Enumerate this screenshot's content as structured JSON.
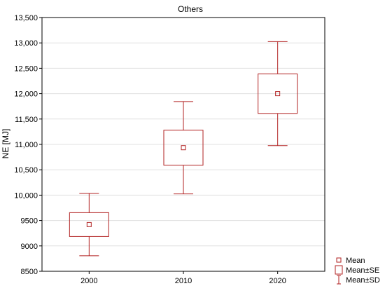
{
  "chart_data": {
    "type": "box",
    "title": "Others",
    "xlabel": "",
    "ylabel": "NE [MJ]",
    "categories": [
      "2000",
      "2010",
      "2020"
    ],
    "mean": [
      9420,
      10935,
      12000
    ],
    "se_low": [
      9185,
      10590,
      11610
    ],
    "se_high": [
      9655,
      11280,
      12390
    ],
    "sd_low": [
      8805,
      10025,
      10975
    ],
    "sd_high": [
      10035,
      11845,
      13025
    ],
    "ylim": [
      8500,
      13500
    ],
    "yticks": [
      8500,
      9000,
      9500,
      10000,
      10500,
      11000,
      11500,
      12000,
      12500,
      13000,
      13500
    ],
    "ytick_labels": [
      "8500",
      "9000",
      "9500",
      "10,000",
      "10,500",
      "11,000",
      "11,500",
      "12,000",
      "12,500",
      "13,000",
      "13,500"
    ],
    "grid": true,
    "legend_position": "bottom-right",
    "legend": [
      {
        "symbol": "mean-marker",
        "label": "Mean"
      },
      {
        "symbol": "se-box",
        "label": "Mean±SE"
      },
      {
        "symbol": "sd-whisker",
        "label": "Mean±SD"
      }
    ],
    "colors": {
      "series": "#b22222",
      "grid": "#e0e0e0",
      "axis": "#000000"
    }
  }
}
